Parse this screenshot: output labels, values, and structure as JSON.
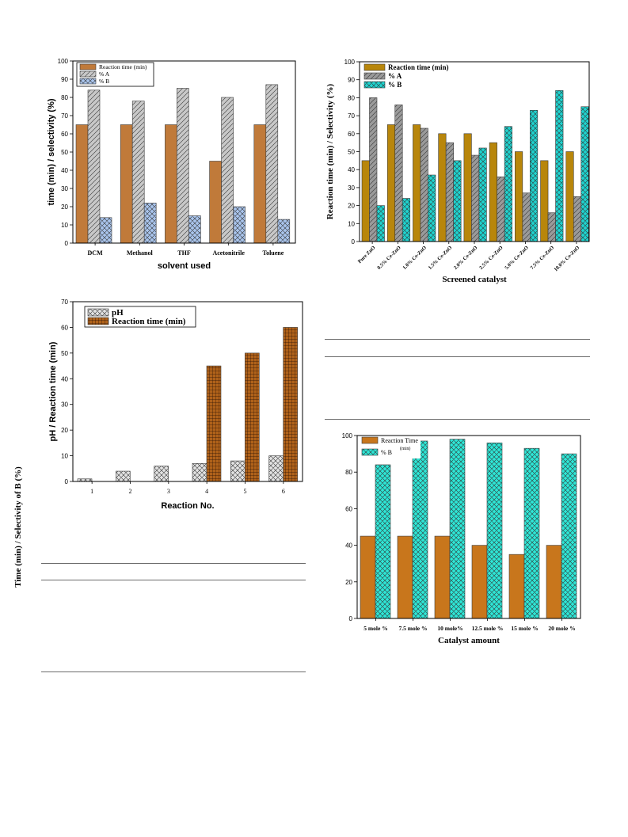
{
  "chart_data": [
    {
      "id": "solvent",
      "type": "bar",
      "title": "",
      "xlabel": "solvent used",
      "ylabel": "time (min) / selectivity (%)",
      "ylim": [
        0,
        100
      ],
      "yticks": [
        "0",
        "10",
        "20",
        "30",
        "40",
        "50",
        "60",
        "70",
        "80",
        "90",
        "100"
      ],
      "categories": [
        "DCM",
        "Methanol",
        "THF",
        "Acetonitrile",
        "Toluene"
      ],
      "legend_position": "top-left",
      "series": [
        {
          "name": "Reaction time (min)",
          "color": "#c07a3a",
          "pattern": "solid",
          "values": [
            65,
            65,
            65,
            45,
            65
          ]
        },
        {
          "name": "% A",
          "color": "#c8c8c8",
          "pattern": "diagonal",
          "values": [
            84,
            78,
            85,
            80,
            87
          ]
        },
        {
          "name": "% B",
          "color": "#a9c4ec",
          "pattern": "crosshatch",
          "values": [
            14,
            22,
            15,
            20,
            13
          ]
        }
      ]
    },
    {
      "id": "catalyst",
      "type": "bar",
      "title": "",
      "xlabel": "Screened catalyst",
      "ylabel": "Reaction time (min) / Selectivity (%)",
      "ylim": [
        0,
        100
      ],
      "yticks": [
        "0",
        "10",
        "20",
        "30",
        "40",
        "50",
        "60",
        "70",
        "80",
        "90",
        "100"
      ],
      "categories": [
        "Pure ZnO",
        "0.5% Ce-ZnO",
        "1.0% Ce-ZnO",
        "1.5% Ce-ZnO",
        "2.0% Ce-ZnO",
        "2.5% Ce-ZnO",
        "5.0% Ce-ZnO",
        "7.5% Ce-ZnO",
        "10.0% Ce-ZnO"
      ],
      "legend_position": "top-left",
      "series": [
        {
          "name": "Reaction time (min)",
          "color": "#b8860b",
          "pattern": "solid",
          "values": [
            45,
            65,
            65,
            60,
            60,
            55,
            50,
            45,
            50
          ]
        },
        {
          "name": "% A",
          "color": "#9a9a9a",
          "pattern": "diagonal",
          "values": [
            80,
            76,
            63,
            55,
            48,
            36,
            27,
            16,
            25
          ]
        },
        {
          "name": "% B",
          "color": "#1fd3cf",
          "pattern": "crosshatch",
          "values": [
            20,
            24,
            37,
            45,
            52,
            64,
            73,
            84,
            75
          ]
        }
      ]
    },
    {
      "id": "ph",
      "type": "bar",
      "title": "",
      "xlabel": "Reaction No.",
      "ylabel": "pH / Reaction time (min)",
      "ylim": [
        0,
        70
      ],
      "yticks": [
        "0",
        "10",
        "20",
        "30",
        "40",
        "50",
        "60",
        "70"
      ],
      "categories": [
        "1",
        "2",
        "3",
        "4",
        "5",
        "6"
      ],
      "legend_position": "top-left",
      "series": [
        {
          "name": "pH",
          "color": "#e2e2e2",
          "pattern": "crosshatch",
          "values": [
            1,
            4,
            6,
            7,
            8,
            10
          ]
        },
        {
          "name": "Reaction time (min)",
          "color": "#b0621a",
          "pattern": "grid",
          "values": [
            0,
            0,
            0,
            45,
            50,
            60
          ]
        }
      ]
    },
    {
      "id": "amount",
      "type": "bar",
      "title": "",
      "xlabel": "Catalyst amount",
      "ylabel": "Time (min) / Selectivity of B (%)",
      "ylim": [
        0,
        100
      ],
      "yticks": [
        "0",
        "20",
        "40",
        "60",
        "80",
        "100"
      ],
      "categories": [
        "5 mole %",
        "7.5 mole %",
        "10 mole%",
        "12.5 mole %",
        "15 mole %",
        "20 mole %"
      ],
      "legend_position": "top-left",
      "series": [
        {
          "name": "Reaction Time\n(min)",
          "color": "#c8761c",
          "pattern": "solid",
          "values": [
            45,
            45,
            45,
            40,
            35,
            40
          ]
        },
        {
          "name": "% B",
          "color": "#2ee6d6",
          "pattern": "crosshatch",
          "values": [
            84,
            97,
            98,
            96,
            93,
            90
          ]
        }
      ]
    }
  ]
}
